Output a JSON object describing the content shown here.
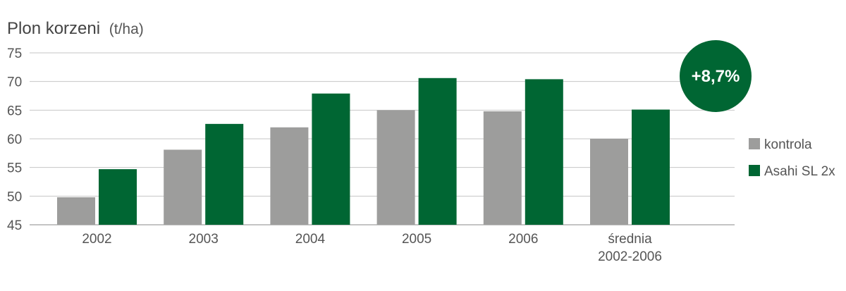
{
  "chart_data": {
    "type": "bar",
    "title": "Plon korzeni",
    "title_unit": "(t/ha)",
    "categories": [
      "2002",
      "2003",
      "2004",
      "2005",
      "2006",
      "średnia 2002-2006"
    ],
    "category_lines": [
      [
        "2002"
      ],
      [
        "2003"
      ],
      [
        "2004"
      ],
      [
        "2005"
      ],
      [
        "2006"
      ],
      [
        "średnia",
        "2002-2006"
      ]
    ],
    "series": [
      {
        "name": "kontrola",
        "color": "#9d9d9c",
        "values": [
          49.8,
          58.1,
          62.0,
          65.0,
          64.8,
          60.0
        ]
      },
      {
        "name": "Asahi SL 2x",
        "color": "#006633",
        "values": [
          54.7,
          62.6,
          67.9,
          70.6,
          70.4,
          65.1
        ]
      }
    ],
    "ylim": [
      45,
      75
    ],
    "yticks": [
      45,
      50,
      55,
      60,
      65,
      70,
      75
    ],
    "grid": true,
    "legend": "right",
    "annotation": {
      "text": "+8,7%",
      "color": "#006633"
    }
  }
}
